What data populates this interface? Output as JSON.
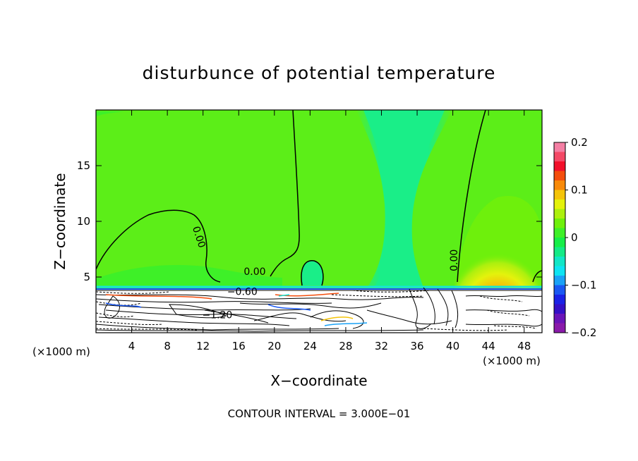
{
  "chart_data": {
    "type": "contour",
    "title": "disturbunce of potential temperature",
    "xlabel": "X−coordinate",
    "ylabel": "Z−coordinate",
    "x_unit_left": "(×1000 m)",
    "x_unit_right": "(×1000 m)",
    "xlim": [
      0,
      50
    ],
    "ylim": [
      0,
      20
    ],
    "x_ticks": [
      {
        "value": 4,
        "label": "4"
      },
      {
        "value": 8,
        "label": "8"
      },
      {
        "value": 12,
        "label": "12"
      },
      {
        "value": 16,
        "label": "16"
      },
      {
        "value": 20,
        "label": "20"
      },
      {
        "value": 24,
        "label": "24"
      },
      {
        "value": 28,
        "label": "28"
      },
      {
        "value": 32,
        "label": "32"
      },
      {
        "value": 36,
        "label": "36"
      },
      {
        "value": 40,
        "label": "40"
      },
      {
        "value": 44,
        "label": "44"
      },
      {
        "value": 48,
        "label": "48"
      }
    ],
    "y_ticks": [
      {
        "value": 5,
        "label": "5"
      },
      {
        "value": 10,
        "label": "10"
      },
      {
        "value": 15,
        "label": "15"
      }
    ],
    "contour_labels": [
      {
        "text": "0.00",
        "x": 11.2,
        "y": 8.5,
        "angle": 72
      },
      {
        "text": "0.00",
        "x": 17.8,
        "y": 5.2,
        "angle": 0
      },
      {
        "text": "0.00",
        "x": 40.5,
        "y": 6.5,
        "angle": -90
      },
      {
        "text": "−0.60",
        "x": 16.4,
        "y": 3.4,
        "angle": 0
      },
      {
        "text": "−1.20",
        "x": 13.6,
        "y": 1.3,
        "angle": 0
      }
    ],
    "colorbar": {
      "min": -0.2,
      "max": 0.2,
      "ticks": [
        {
          "value": 0.2,
          "label": "0.2"
        },
        {
          "value": 0.1,
          "label": "0.1"
        },
        {
          "value": 0,
          "label": "0"
        },
        {
          "value": -0.1,
          "label": "−0.1"
        },
        {
          "value": -0.2,
          "label": "−0.2"
        }
      ],
      "levels": [
        "#f47fa4",
        "#f44866",
        "#f20f2a",
        "#f44d0d",
        "#f88a0a",
        "#f4c40a",
        "#e4f20c",
        "#acf00e",
        "#6ef00c",
        "#3ef028",
        "#16ee48",
        "#14ea86",
        "#12e6c6",
        "#0ee4f2",
        "#1aa2f6",
        "#1a58f2",
        "#1a22e6",
        "#3410c6",
        "#6a14b8",
        "#8a1aaa"
      ]
    },
    "contour_interval_text": "CONTOUR INTERVAL = 3.000E−01",
    "colors": {
      "background_field": "#5cee18",
      "anomaly_field": "#1aee88",
      "boundary_line": "#1a58f2"
    }
  }
}
